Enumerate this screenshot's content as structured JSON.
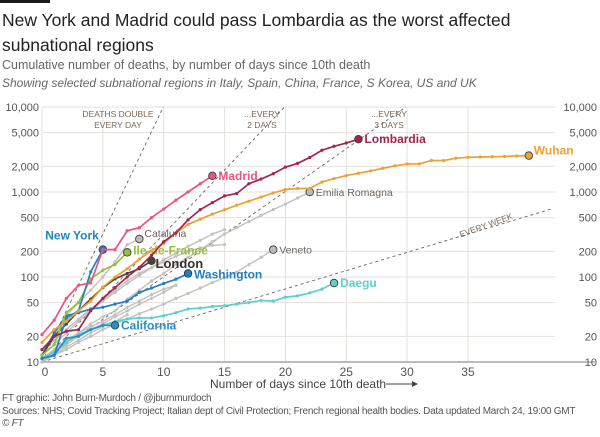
{
  "header": {
    "title": "New York and Madrid could pass Lombardia as the worst affected subnational regions",
    "subtitle": "Cumulative number of deaths, by number of days since 10th death",
    "subtitle2": "Showing selected subnational regions in Italy, Spain, China, France, S Korea, US and UK"
  },
  "footer": {
    "credit": "FT graphic: John Burn-Murdoch / @jburnmurdoch",
    "sources": "Sources: NHS; Covid Tracking Project; Italian dept of Civil Protection; French regional health bodies. Data updated March 24, 19:00 GMT",
    "copyright": "© FT"
  },
  "chart_data": {
    "type": "line",
    "xlabel": "Number of days since 10th death",
    "y_scale": "log",
    "xlim": [
      0,
      42
    ],
    "ylim": [
      10,
      10000
    ],
    "x_ticks": [
      0,
      5,
      10,
      15,
      20,
      25,
      30,
      35
    ],
    "y_ticks": [
      10,
      20,
      50,
      100,
      200,
      500,
      1000,
      2000,
      5000,
      10000
    ],
    "y_tick_labels": [
      "10",
      "20",
      "50",
      "100",
      "200",
      "500",
      "1,000",
      "2,000",
      "5,000",
      "10,000"
    ],
    "grid": true,
    "guides": [
      {
        "label": "DEATHS DOUBLE|EVERY DAY",
        "doubling_days": 1
      },
      {
        "label": "...EVERY|2 DAYS",
        "doubling_days": 2
      },
      {
        "label": "...EVERY|3 DAYS",
        "doubling_days": 3
      },
      {
        "label": "EVERY WEEK",
        "doubling_days": 7
      }
    ],
    "series": [
      {
        "name": "",
        "color": "#c4c0bc",
        "highlight": false,
        "values": [
          11,
          14,
          18,
          22,
          26,
          30,
          36,
          44,
          52,
          62,
          72,
          80
        ]
      },
      {
        "name": "",
        "color": "#c4c0bc",
        "highlight": false,
        "values": [
          10,
          13,
          16,
          20,
          24,
          28,
          34,
          40,
          48,
          56,
          66,
          80
        ]
      },
      {
        "name": "",
        "color": "#c4c0bc",
        "highlight": false,
        "values": [
          12,
          16,
          22,
          30,
          40,
          52,
          66,
          84,
          104,
          128,
          150,
          175,
          200,
          220,
          235,
          240
        ]
      },
      {
        "name": "",
        "color": "#c4c0bc",
        "highlight": false,
        "values": [
          14,
          18,
          24,
          32,
          42,
          54,
          70,
          90,
          110,
          130,
          160,
          190,
          230,
          270,
          320,
          360
        ]
      },
      {
        "name": "",
        "color": "#c4c0bc",
        "highlight": false,
        "values": [
          10,
          12,
          15,
          18,
          22,
          26,
          30,
          36
        ]
      },
      {
        "name": "Emilia Romagna",
        "color": "#c4c0bc",
        "label_color": "#6b6560",
        "highlight": false,
        "values": [
          11,
          14,
          18,
          22,
          28,
          34,
          40,
          55,
          70,
          90,
          110,
          140,
          170,
          210,
          260,
          320,
          380,
          450,
          530,
          620,
          720,
          850,
          1000
        ]
      },
      {
        "name": "Veneto",
        "color": "#c4c0bc",
        "label_color": "#6b6560",
        "highlight": false,
        "values": [
          10,
          12,
          14,
          17,
          20,
          24,
          28,
          32,
          37,
          42,
          48,
          56,
          64,
          74,
          86,
          98,
          114,
          140,
          170,
          210
        ]
      },
      {
        "name": "Cataluña",
        "color": "#c4c0bc",
        "label_color": "#6b6560",
        "highlight": false,
        "values": [
          12,
          20,
          35,
          50,
          70,
          100,
          150,
          240,
          280
        ]
      },
      {
        "name": "Daegu",
        "color": "#5ccfd0",
        "highlight": true,
        "values": [
          11,
          13,
          17,
          21,
          24,
          27,
          30,
          32,
          33,
          33,
          35,
          38,
          42,
          43,
          45,
          46,
          48,
          50,
          53,
          52,
          58,
          60,
          65,
          72,
          85
        ]
      },
      {
        "name": "California",
        "color": "#2a8ec8",
        "highlight": true,
        "values": [
          11,
          12,
          19,
          20,
          24,
          27,
          27
        ]
      },
      {
        "name": "Washington",
        "color": "#1f7ec4",
        "highlight": true,
        "values": [
          12,
          22,
          35,
          38,
          42,
          44,
          48,
          52,
          66,
          74,
          84,
          94,
          110
        ]
      },
      {
        "name": "London",
        "color": "#4a4440",
        "highlight": true,
        "values": [
          12,
          20,
          28,
          40,
          55,
          75,
          95,
          110,
          125,
          155
        ]
      },
      {
        "name": "Ile-de-France",
        "color": "#9bbd3c",
        "highlight": true,
        "values": [
          12,
          16,
          38,
          50,
          95,
          120,
          140,
          195
        ]
      },
      {
        "name": "New York",
        "color": "#1f83c6",
        "highlight": true,
        "values": [
          11,
          12,
          33,
          40,
          115,
          210
        ]
      },
      {
        "name": "Wuhan",
        "color": "#eba133",
        "highlight": true,
        "values": [
          17,
          24,
          30,
          40,
          52,
          76,
          100,
          125,
          162,
          204,
          249,
          330,
          414,
          479,
          549,
          618,
          699,
          780,
          871,
          974,
          1068,
          1100,
          1100,
          1310,
          1440,
          1560,
          1660,
          1770,
          1900,
          2030,
          2140,
          2140,
          2350,
          2340,
          2500,
          2560,
          2580,
          2600,
          2620,
          2650,
          2680
        ]
      },
      {
        "name": "Lombardia",
        "color": "#a0264f",
        "highlight": true,
        "values": [
          14,
          20,
          23,
          24,
          40,
          56,
          75,
          100,
          130,
          180,
          260,
          330,
          470,
          620,
          750,
          900,
          960,
          1250,
          1420,
          1640,
          1960,
          2170,
          2550,
          3100,
          3450,
          3770,
          4180
        ]
      },
      {
        "name": "Madrid",
        "color": "#e8557f",
        "highlight": true,
        "values": [
          21,
          31,
          56,
          80,
          85,
          210,
          210,
          350,
          380,
          500,
          630,
          800,
          1000,
          1250,
          1550
        ]
      }
    ]
  }
}
